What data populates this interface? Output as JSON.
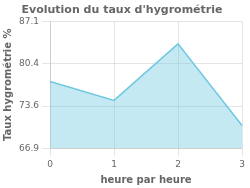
{
  "chart_data": {
    "type": "area",
    "title": "Evolution du taux d'hygrométrie",
    "xlabel": "heure par heure",
    "ylabel": "Taux hygrométrie %",
    "x": [
      0,
      1,
      2,
      3
    ],
    "values": [
      77.5,
      74.5,
      83.5,
      70.5
    ],
    "color": "#6dc8e0",
    "xlim": [
      0,
      3
    ],
    "xticks": [
      0,
      1,
      2,
      3
    ],
    "ylim": [
      66.9,
      87.1
    ],
    "yticks": [
      66.9,
      73.6,
      80.4,
      87.1
    ],
    "grid": true
  }
}
